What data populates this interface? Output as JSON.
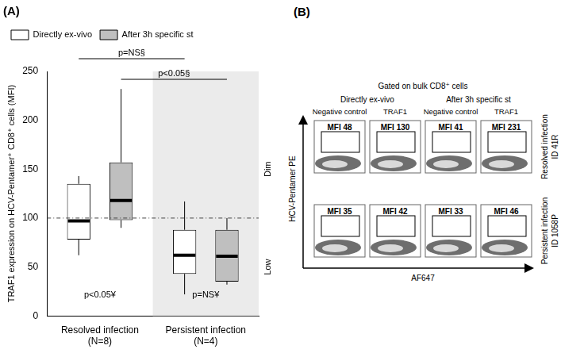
{
  "chart_data": {
    "type": "box",
    "title": "(A)",
    "y_label": "TRAF1 expression on HCV-Pentamer⁺ CD8⁺ cells (MFI)",
    "categories": [
      "Resolved infection",
      "Persistent infection"
    ],
    "category_notes": [
      "(N=8)",
      "(N=4)"
    ],
    "series": [
      {
        "name": "Directly ex-vivo",
        "color": "#ffffff",
        "values": [
          {
            "min": 62,
            "q1": 78,
            "median": 97,
            "q3": 135,
            "max": 143
          },
          {
            "min": 22,
            "q1": 43,
            "median": 62,
            "q3": 88,
            "max": 117
          }
        ]
      },
      {
        "name": "After 3h specific st",
        "color": "#bfbfbf",
        "values": [
          {
            "min": 90,
            "q1": 98,
            "median": 118,
            "q3": 157,
            "max": 232
          },
          {
            "min": 32,
            "q1": 35,
            "median": 61,
            "q3": 88,
            "max": 100
          }
        ]
      }
    ],
    "reference_line": 100,
    "side_labels": [
      "Dim",
      "Low"
    ],
    "comparisons": [
      {
        "label": "p=NS§",
        "series": "Directly ex-vivo"
      },
      {
        "label": "p<0.05§",
        "series": "After 3h specific st"
      }
    ],
    "within_category": [
      "p<0.05¥",
      "p=NS¥"
    ],
    "ylim": [
      0,
      250
    ],
    "yticks": [
      0,
      50,
      100,
      150,
      200,
      250
    ],
    "grid": false,
    "legend": "top-left"
  },
  "panel_b": {
    "panel_label": "(B)",
    "title": "Gated on bulk CD8⁺ cells",
    "column_groups": [
      "Directly ex-vivo",
      "After 3h specific st"
    ],
    "columns": [
      "Negative control",
      "TRAF1",
      "Negative control",
      "TRAF1"
    ],
    "mfi_prefix": "MFI",
    "rows": [
      {
        "label": "Resolved infection",
        "id": "ID 41R",
        "mfi": [
          48,
          130,
          41,
          231
        ]
      },
      {
        "label": "Persistent infection",
        "id": "ID 1058P",
        "mfi": [
          35,
          42,
          33,
          46
        ]
      }
    ],
    "y_label": "HCV-Pentamer PE",
    "x_label": "AF647"
  }
}
